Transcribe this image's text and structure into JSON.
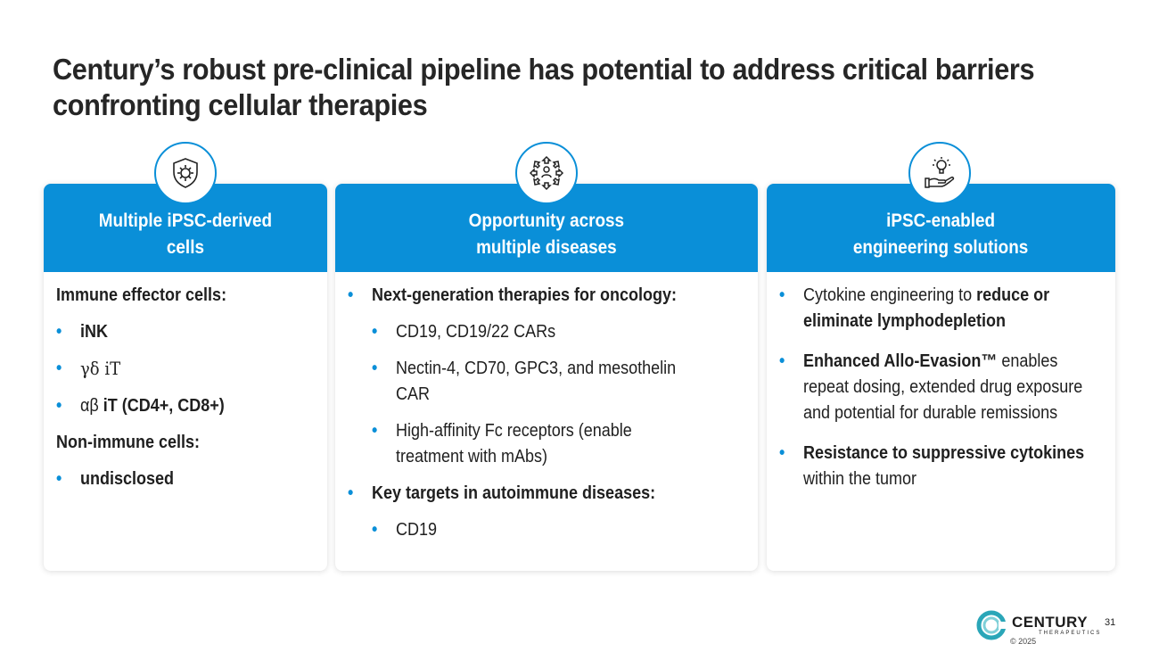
{
  "title": {
    "line1": "Century’s robust pre-clinical pipeline has potential to address critical barriers",
    "line2": "confronting cellular therapies"
  },
  "colors": {
    "accent": "#0a8fd8",
    "teal": "#2aa6b8"
  },
  "cards": [
    {
      "icon": "shield-virus-icon",
      "heading_line1": "Multiple iPSC-derived",
      "heading_line2": "cells",
      "immune_heading": "Immune effector cells:",
      "immune_items": [
        "iNK",
        "γδ iT"
      ],
      "ab_prefix": "αβ",
      "ab_bold": "iT (CD4+, CD8+)",
      "nonimmune_heading": "Non-immune cells:",
      "nonimmune_items": [
        "undisclosed"
      ]
    },
    {
      "icon": "expand-arrows-person-icon",
      "heading_line1": "Opportunity across",
      "heading_line2": "multiple diseases",
      "oncology_heading": "Next-generation therapies for oncology:",
      "oncology_items": [
        "CD19, CD19/22 CARs",
        "Nectin-4, CD70, GPC3, and mesothelin CAR",
        "High-affinity Fc receptors (enable treatment with mAbs)"
      ],
      "autoimmune_heading": "Key targets in autoimmune diseases:",
      "autoimmune_items": [
        "CD19"
      ]
    },
    {
      "icon": "lightbulb-hand-icon",
      "heading_line1": "iPSC-enabled",
      "heading_line2": "engineering solutions",
      "b1_pre": "Cytokine engineering to ",
      "b1_bold": "reduce or eliminate lymphodepletion",
      "b2_bold": "Enhanced Allo-Evasion™",
      "b2_post": " enables repeat dosing, extended drug exposure and potential for durable remissions",
      "b3_bold": "Resistance to suppressive cytokines",
      "b3_post": " within the tumor"
    }
  ],
  "footer": {
    "logo_word": "CENTURY",
    "logo_sub": "THERAPEUTICS",
    "copyright": "© 2025",
    "page_number": "31"
  }
}
